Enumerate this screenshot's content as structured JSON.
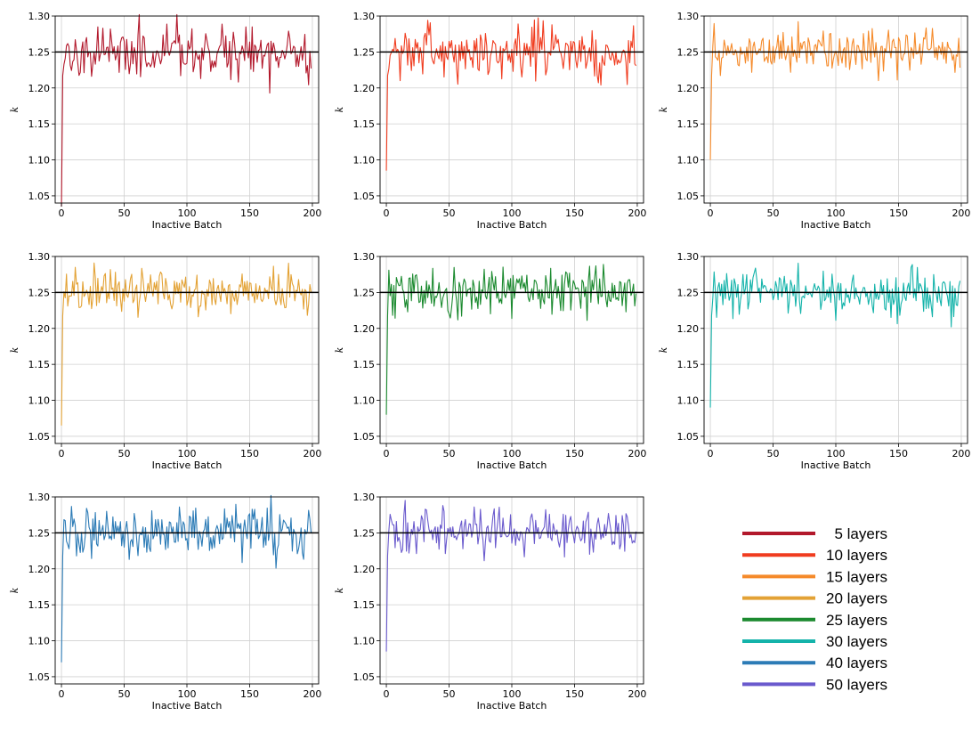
{
  "chart_data": [
    {
      "type": "line",
      "xlabel": "Inactive Batch",
      "ylabel": "k",
      "ylim": [
        1.04,
        1.3
      ],
      "xlim": [
        -5,
        205
      ],
      "xticks": [
        "0",
        "50",
        "100",
        "150",
        "200"
      ],
      "yticks": [
        "1.05",
        "1.10",
        "1.15",
        "1.20",
        "1.25",
        "1.30"
      ],
      "reference_line": 1.25,
      "grid": true,
      "series": [
        {
          "name": "5 layers",
          "color": "#b2182b",
          "start": 1.035,
          "seed": 11,
          "amplitude": 0.018
        }
      ]
    },
    {
      "type": "line",
      "xlabel": "Inactive Batch",
      "ylabel": "k",
      "ylim": [
        1.04,
        1.3
      ],
      "xlim": [
        -5,
        205
      ],
      "xticks": [
        "0",
        "50",
        "100",
        "150",
        "200"
      ],
      "yticks": [
        "1.05",
        "1.10",
        "1.15",
        "1.20",
        "1.25",
        "1.30"
      ],
      "reference_line": 1.25,
      "grid": true,
      "series": [
        {
          "name": "10 layers",
          "color": "#f03c1f",
          "start": 1.085,
          "seed": 23,
          "amplitude": 0.018
        }
      ]
    },
    {
      "type": "line",
      "xlabel": "Inactive Batch",
      "ylabel": "k",
      "ylim": [
        1.04,
        1.3
      ],
      "xlim": [
        -5,
        205
      ],
      "xticks": [
        "0",
        "50",
        "100",
        "150",
        "200"
      ],
      "yticks": [
        "1.05",
        "1.10",
        "1.15",
        "1.20",
        "1.25",
        "1.30"
      ],
      "reference_line": 1.25,
      "grid": true,
      "series": [
        {
          "name": "15 layers",
          "color": "#f58a2a",
          "start": 1.1,
          "seed": 37,
          "amplitude": 0.016
        }
      ]
    },
    {
      "type": "line",
      "xlabel": "Inactive Batch",
      "ylabel": "k",
      "ylim": [
        1.04,
        1.3
      ],
      "xlim": [
        -5,
        205
      ],
      "xticks": [
        "0",
        "50",
        "100",
        "150",
        "200"
      ],
      "yticks": [
        "1.05",
        "1.10",
        "1.15",
        "1.20",
        "1.25",
        "1.30"
      ],
      "reference_line": 1.25,
      "grid": true,
      "series": [
        {
          "name": "20 layers",
          "color": "#e3a235",
          "start": 1.065,
          "seed": 41,
          "amplitude": 0.016
        }
      ]
    },
    {
      "type": "line",
      "xlabel": "Inactive Batch",
      "ylabel": "k",
      "ylim": [
        1.04,
        1.3
      ],
      "xlim": [
        -5,
        205
      ],
      "xticks": [
        "0",
        "50",
        "100",
        "150",
        "200"
      ],
      "yticks": [
        "1.05",
        "1.10",
        "1.15",
        "1.20",
        "1.25",
        "1.30"
      ],
      "reference_line": 1.25,
      "grid": true,
      "series": [
        {
          "name": "25 layers",
          "color": "#1b8a2f",
          "start": 1.08,
          "seed": 53,
          "amplitude": 0.018
        }
      ]
    },
    {
      "type": "line",
      "xlabel": "Inactive Batch",
      "ylabel": "k",
      "ylim": [
        1.04,
        1.3
      ],
      "xlim": [
        -5,
        205
      ],
      "xticks": [
        "0",
        "50",
        "100",
        "150",
        "200"
      ],
      "yticks": [
        "1.05",
        "1.10",
        "1.15",
        "1.20",
        "1.25",
        "1.30"
      ],
      "reference_line": 1.25,
      "grid": true,
      "series": [
        {
          "name": "30 layers",
          "color": "#14b3aa",
          "start": 1.09,
          "seed": 67,
          "amplitude": 0.015
        }
      ]
    },
    {
      "type": "line",
      "xlabel": "Inactive Batch",
      "ylabel": "k",
      "ylim": [
        1.04,
        1.3
      ],
      "xlim": [
        -5,
        205
      ],
      "xticks": [
        "0",
        "50",
        "100",
        "150",
        "200"
      ],
      "yticks": [
        "1.05",
        "1.10",
        "1.15",
        "1.20",
        "1.25",
        "1.30"
      ],
      "reference_line": 1.25,
      "grid": true,
      "series": [
        {
          "name": "40 layers",
          "color": "#2c7bb6",
          "start": 1.07,
          "seed": 79,
          "amplitude": 0.017
        }
      ]
    },
    {
      "type": "line",
      "xlabel": "Inactive Batch",
      "ylabel": "k",
      "ylim": [
        1.04,
        1.3
      ],
      "xlim": [
        -5,
        205
      ],
      "xticks": [
        "0",
        "50",
        "100",
        "150",
        "200"
      ],
      "yticks": [
        "1.05",
        "1.10",
        "1.15",
        "1.20",
        "1.25",
        "1.30"
      ],
      "reference_line": 1.25,
      "grid": true,
      "series": [
        {
          "name": "50 layers",
          "color": "#6a5acd",
          "start": 1.085,
          "seed": 97,
          "amplitude": 0.016
        }
      ]
    }
  ],
  "legend": {
    "items": [
      {
        "label": "5 layers",
        "color": "#b2182b"
      },
      {
        "label": "10 layers",
        "color": "#f03c1f"
      },
      {
        "label": "15 layers",
        "color": "#f58a2a"
      },
      {
        "label": "20 layers",
        "color": "#e3a235"
      },
      {
        "label": "25 layers",
        "color": "#1b8a2f"
      },
      {
        "label": "30 layers",
        "color": "#14b3aa"
      },
      {
        "label": "40 layers",
        "color": "#2c7bb6"
      },
      {
        "label": "50 layers",
        "color": "#6a5acd"
      }
    ]
  }
}
